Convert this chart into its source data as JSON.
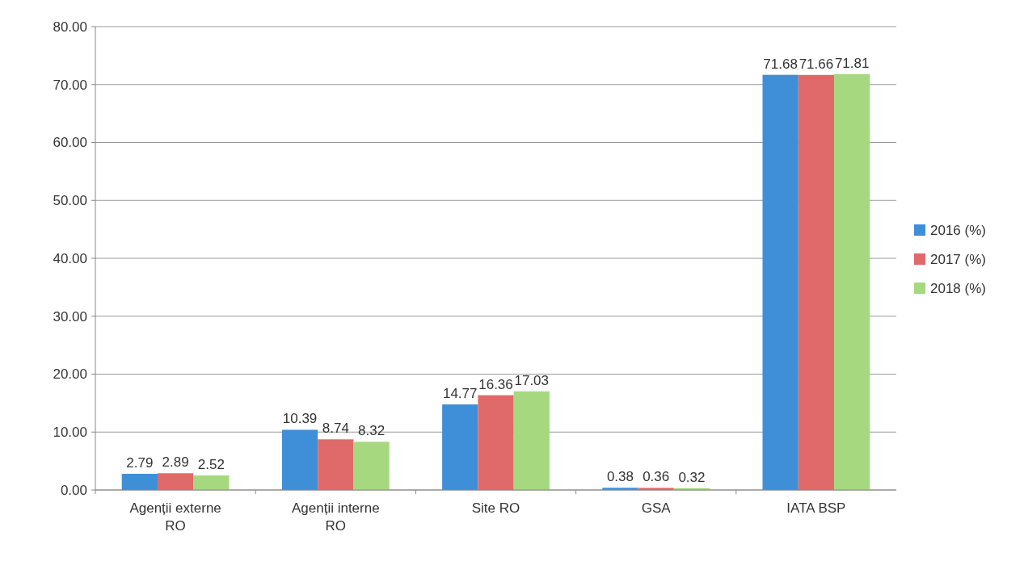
{
  "chart_data": {
    "type": "bar",
    "categories": [
      "Agenții externe RO",
      "Agenții interne RO",
      "Site RO",
      "GSA",
      "IATA BSP"
    ],
    "series": [
      {
        "name": "2016 (%)",
        "color": "#3f8fd8",
        "values": [
          2.79,
          10.39,
          14.77,
          0.38,
          71.68
        ]
      },
      {
        "name": "2017 (%)",
        "color": "#e06a6a",
        "values": [
          2.89,
          8.74,
          16.36,
          0.36,
          71.66
        ]
      },
      {
        "name": "2018 (%)",
        "color": "#a6d97f",
        "values": [
          2.52,
          8.32,
          17.03,
          0.32,
          71.81
        ]
      }
    ],
    "ylim": [
      0,
      80
    ],
    "yticks": [
      {
        "value": 0,
        "label": "0.00"
      },
      {
        "value": 10,
        "label": "10.00"
      },
      {
        "value": 20,
        "label": "20.00"
      },
      {
        "value": 30,
        "label": "30.00"
      },
      {
        "value": 40,
        "label": "40.00"
      },
      {
        "value": 50,
        "label": "50.00"
      },
      {
        "value": 60,
        "label": "60.00"
      },
      {
        "value": 70,
        "label": "70.00"
      },
      {
        "value": 80,
        "label": "80.00"
      }
    ],
    "grid": "y",
    "legend": "right",
    "data_labels": true
  }
}
